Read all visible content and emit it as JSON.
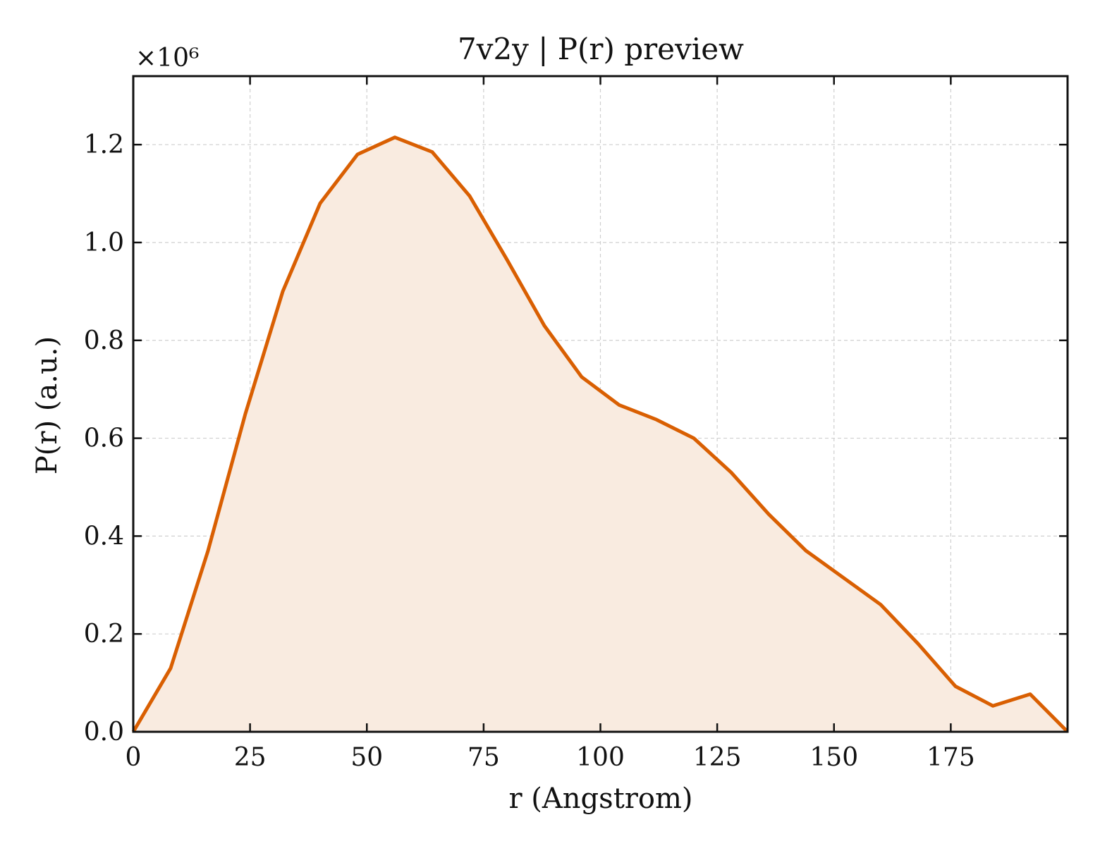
{
  "chart_data": {
    "type": "area",
    "title": "7v2y | P(r) preview",
    "xlabel": "r (Angstrom)",
    "ylabel": "P(r) (a.u.)",
    "y_multiplier_label": "×10⁶",
    "xlim": [
      0,
      200
    ],
    "ylim": [
      0,
      1.34
    ],
    "xticks": [
      0,
      25,
      50,
      75,
      100,
      125,
      150,
      175
    ],
    "yticks": [
      0.0,
      0.2,
      0.4,
      0.6,
      0.8,
      1.0,
      1.2
    ],
    "xtick_labels": [
      "0",
      "25",
      "50",
      "75",
      "100",
      "125",
      "150",
      "175"
    ],
    "ytick_labels": [
      "0.0",
      "0.2",
      "0.4",
      "0.6",
      "0.8",
      "1.0",
      "1.2"
    ],
    "grid": true,
    "line_color": "#d95f02",
    "fill_color": "#f9ebe0",
    "series": [
      {
        "x": [
          0,
          8,
          16,
          24,
          32,
          40,
          48,
          56,
          64,
          72,
          80,
          88,
          96,
          104,
          112,
          120,
          128,
          136,
          144,
          152,
          160,
          168,
          176,
          184,
          192,
          200
        ],
        "values": [
          0.0,
          0.13,
          0.37,
          0.65,
          0.9,
          1.08,
          1.18,
          1.215,
          1.185,
          1.095,
          0.965,
          0.83,
          0.725,
          0.668,
          0.638,
          0.6,
          0.53,
          0.445,
          0.37,
          0.315,
          0.26,
          0.18,
          0.093,
          0.053,
          0.077,
          0.0
        ]
      }
    ]
  }
}
